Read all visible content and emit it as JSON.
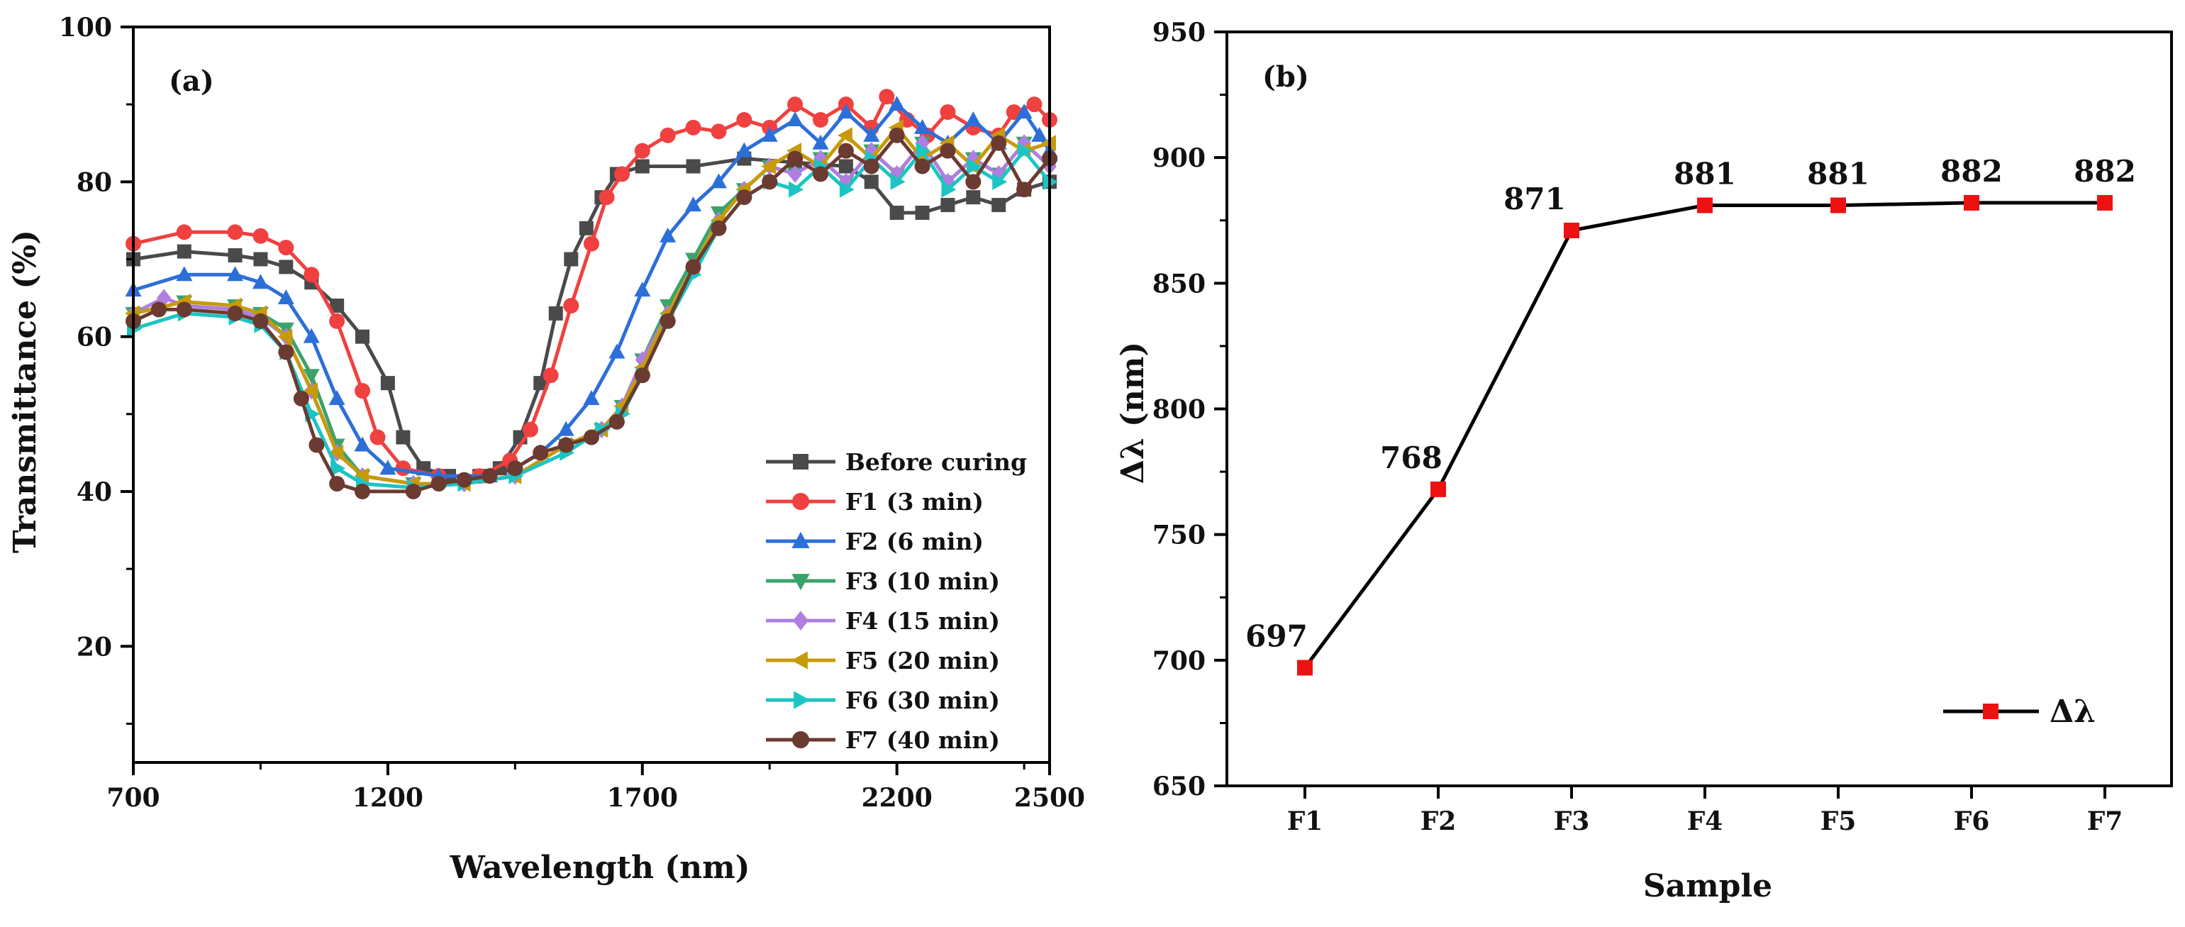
{
  "chart_data": [
    {
      "type": "line",
      "panel_label": "(a)",
      "xlabel": "Wavelength (nm)",
      "ylabel": "Transmittance (%)",
      "xlim": [
        700,
        2500
      ],
      "ylim": [
        5,
        100
      ],
      "xticks": [
        700,
        1200,
        1700,
        2200,
        2500
      ],
      "yticks": [
        20,
        40,
        60,
        80,
        100
      ],
      "legend_position": "bottom-right",
      "series": [
        {
          "name": "Before curing",
          "color": "#4a4a4a",
          "marker": "square",
          "points": [
            [
              700,
              70
            ],
            [
              800,
              71
            ],
            [
              900,
              70.5
            ],
            [
              950,
              70
            ],
            [
              1000,
              69
            ],
            [
              1050,
              67
            ],
            [
              1100,
              64
            ],
            [
              1150,
              60
            ],
            [
              1200,
              54
            ],
            [
              1230,
              47
            ],
            [
              1270,
              43
            ],
            [
              1320,
              42
            ],
            [
              1380,
              42
            ],
            [
              1420,
              43
            ],
            [
              1460,
              47
            ],
            [
              1500,
              54
            ],
            [
              1530,
              63
            ],
            [
              1560,
              70
            ],
            [
              1590,
              74
            ],
            [
              1620,
              78
            ],
            [
              1650,
              81
            ],
            [
              1700,
              82
            ],
            [
              1800,
              82
            ],
            [
              1900,
              83
            ],
            [
              2000,
              82.5
            ],
            [
              2100,
              82
            ],
            [
              2150,
              80
            ],
            [
              2200,
              76
            ],
            [
              2250,
              76
            ],
            [
              2300,
              77
            ],
            [
              2350,
              78
            ],
            [
              2400,
              77
            ],
            [
              2450,
              79
            ],
            [
              2500,
              80
            ]
          ]
        },
        {
          "name": "F1 (3 min)",
          "color": "#f04040",
          "marker": "circle",
          "points": [
            [
              700,
              72
            ],
            [
              800,
              73.5
            ],
            [
              900,
              73.5
            ],
            [
              950,
              73
            ],
            [
              1000,
              71.5
            ],
            [
              1050,
              68
            ],
            [
              1100,
              62
            ],
            [
              1150,
              53
            ],
            [
              1180,
              47
            ],
            [
              1230,
              43
            ],
            [
              1300,
              42
            ],
            [
              1380,
              42
            ],
            [
              1440,
              44
            ],
            [
              1480,
              48
            ],
            [
              1520,
              55
            ],
            [
              1560,
              64
            ],
            [
              1600,
              72
            ],
            [
              1630,
              78
            ],
            [
              1660,
              81
            ],
            [
              1700,
              84
            ],
            [
              1750,
              86
            ],
            [
              1800,
              87
            ],
            [
              1850,
              86.5
            ],
            [
              1900,
              88
            ],
            [
              1950,
              87
            ],
            [
              2000,
              90
            ],
            [
              2050,
              88
            ],
            [
              2100,
              90
            ],
            [
              2150,
              87
            ],
            [
              2180,
              91
            ],
            [
              2220,
              88
            ],
            [
              2260,
              86
            ],
            [
              2300,
              89
            ],
            [
              2350,
              87
            ],
            [
              2400,
              86
            ],
            [
              2430,
              89
            ],
            [
              2470,
              90
            ],
            [
              2500,
              88
            ]
          ]
        },
        {
          "name": "F2 (6 min)",
          "color": "#2d6fd8",
          "marker": "triangle-up",
          "points": [
            [
              700,
              66
            ],
            [
              800,
              68
            ],
            [
              900,
              68
            ],
            [
              950,
              67
            ],
            [
              1000,
              65
            ],
            [
              1050,
              60
            ],
            [
              1100,
              52
            ],
            [
              1150,
              46
            ],
            [
              1200,
              43
            ],
            [
              1300,
              42
            ],
            [
              1400,
              42
            ],
            [
              1450,
              43
            ],
            [
              1500,
              45
            ],
            [
              1550,
              48
            ],
            [
              1600,
              52
            ],
            [
              1650,
              58
            ],
            [
              1700,
              66
            ],
            [
              1750,
              73
            ],
            [
              1800,
              77
            ],
            [
              1850,
              80
            ],
            [
              1900,
              84
            ],
            [
              1950,
              86
            ],
            [
              2000,
              88
            ],
            [
              2050,
              85
            ],
            [
              2100,
              89
            ],
            [
              2150,
              86
            ],
            [
              2200,
              90
            ],
            [
              2250,
              87
            ],
            [
              2300,
              85
            ],
            [
              2350,
              88
            ],
            [
              2400,
              85
            ],
            [
              2450,
              89
            ],
            [
              2480,
              86
            ],
            [
              2500,
              84
            ]
          ]
        },
        {
          "name": "F3 (10 min)",
          "color": "#3aa36a",
          "marker": "triangle-down",
          "points": [
            [
              700,
              63
            ],
            [
              800,
              64.5
            ],
            [
              900,
              64
            ],
            [
              950,
              63
            ],
            [
              1000,
              61
            ],
            [
              1050,
              55
            ],
            [
              1100,
              46
            ],
            [
              1150,
              42
            ],
            [
              1250,
              41
            ],
            [
              1350,
              41
            ],
            [
              1450,
              42
            ],
            [
              1550,
              46
            ],
            [
              1620,
              48
            ],
            [
              1660,
              51
            ],
            [
              1700,
              57
            ],
            [
              1750,
              64
            ],
            [
              1800,
              70
            ],
            [
              1850,
              76
            ],
            [
              1900,
              79
            ],
            [
              1950,
              82
            ],
            [
              2000,
              81
            ],
            [
              2050,
              83
            ],
            [
              2100,
              80
            ],
            [
              2150,
              84
            ],
            [
              2200,
              81
            ],
            [
              2250,
              85
            ],
            [
              2300,
              80
            ],
            [
              2350,
              83
            ],
            [
              2400,
              81
            ],
            [
              2450,
              85
            ],
            [
              2500,
              82
            ]
          ]
        },
        {
          "name": "F4 (15 min)",
          "color": "#b07ee0",
          "marker": "diamond",
          "points": [
            [
              700,
              63
            ],
            [
              760,
              65
            ],
            [
              800,
              64
            ],
            [
              900,
              63.5
            ],
            [
              950,
              62.5
            ],
            [
              1000,
              60
            ],
            [
              1050,
              53
            ],
            [
              1100,
              45
            ],
            [
              1150,
              42
            ],
            [
              1250,
              41
            ],
            [
              1350,
              41
            ],
            [
              1450,
              42
            ],
            [
              1550,
              46
            ],
            [
              1620,
              48
            ],
            [
              1660,
              51
            ],
            [
              1700,
              57
            ],
            [
              1750,
              63
            ],
            [
              1800,
              69
            ],
            [
              1850,
              75
            ],
            [
              1900,
              79
            ],
            [
              1950,
              82
            ],
            [
              2000,
              81
            ],
            [
              2050,
              83
            ],
            [
              2100,
              80
            ],
            [
              2150,
              84
            ],
            [
              2200,
              81
            ],
            [
              2250,
              85
            ],
            [
              2300,
              80
            ],
            [
              2350,
              83
            ],
            [
              2400,
              81
            ],
            [
              2450,
              85
            ],
            [
              2500,
              82
            ]
          ]
        },
        {
          "name": "F5 (20 min)",
          "color": "#c79a0a",
          "marker": "triangle-left",
          "points": [
            [
              700,
              63
            ],
            [
              800,
              64.5
            ],
            [
              900,
              64
            ],
            [
              950,
              63
            ],
            [
              1000,
              60
            ],
            [
              1050,
              53
            ],
            [
              1100,
              45
            ],
            [
              1150,
              42
            ],
            [
              1250,
              41
            ],
            [
              1350,
              41
            ],
            [
              1450,
              42
            ],
            [
              1550,
              46
            ],
            [
              1620,
              48
            ],
            [
              1660,
              51
            ],
            [
              1700,
              56
            ],
            [
              1750,
              63
            ],
            [
              1800,
              69
            ],
            [
              1850,
              75
            ],
            [
              1900,
              79
            ],
            [
              1950,
              82
            ],
            [
              2000,
              84
            ],
            [
              2050,
              82
            ],
            [
              2100,
              86
            ],
            [
              2150,
              83
            ],
            [
              2200,
              87
            ],
            [
              2250,
              83
            ],
            [
              2300,
              85
            ],
            [
              2350,
              82
            ],
            [
              2400,
              86
            ],
            [
              2450,
              84
            ],
            [
              2500,
              85
            ]
          ]
        },
        {
          "name": "F6 (30 min)",
          "color": "#1cc4c4",
          "marker": "triangle-right",
          "points": [
            [
              700,
              61
            ],
            [
              800,
              63
            ],
            [
              900,
              62.5
            ],
            [
              950,
              61.5
            ],
            [
              1000,
              58
            ],
            [
              1050,
              50
            ],
            [
              1100,
              43
            ],
            [
              1150,
              41
            ],
            [
              1250,
              40.5
            ],
            [
              1350,
              41
            ],
            [
              1450,
              42
            ],
            [
              1550,
              45
            ],
            [
              1620,
              48
            ],
            [
              1660,
              50
            ],
            [
              1700,
              55
            ],
            [
              1750,
              62
            ],
            [
              1800,
              68
            ],
            [
              1850,
              74
            ],
            [
              1900,
              78
            ],
            [
              1950,
              80
            ],
            [
              2000,
              79
            ],
            [
              2050,
              82
            ],
            [
              2100,
              79
            ],
            [
              2150,
              83
            ],
            [
              2200,
              80
            ],
            [
              2250,
              84
            ],
            [
              2300,
              79
            ],
            [
              2350,
              82
            ],
            [
              2400,
              80
            ],
            [
              2450,
              84
            ],
            [
              2500,
              80
            ]
          ]
        },
        {
          "name": "F7 (40 min)",
          "color": "#6b3a30",
          "marker": "circle",
          "points": [
            [
              700,
              62
            ],
            [
              750,
              63.5
            ],
            [
              800,
              63.5
            ],
            [
              900,
              63
            ],
            [
              950,
              62
            ],
            [
              1000,
              58
            ],
            [
              1030,
              52
            ],
            [
              1060,
              46
            ],
            [
              1100,
              41
            ],
            [
              1150,
              40
            ],
            [
              1250,
              40
            ],
            [
              1300,
              41
            ],
            [
              1350,
              41.5
            ],
            [
              1400,
              42
            ],
            [
              1450,
              43
            ],
            [
              1500,
              45
            ],
            [
              1550,
              46
            ],
            [
              1600,
              47
            ],
            [
              1650,
              49
            ],
            [
              1700,
              55
            ],
            [
              1750,
              62
            ],
            [
              1800,
              69
            ],
            [
              1850,
              74
            ],
            [
              1900,
              78
            ],
            [
              1950,
              80
            ],
            [
              2000,
              83
            ],
            [
              2050,
              81
            ],
            [
              2100,
              84
            ],
            [
              2150,
              82
            ],
            [
              2200,
              86
            ],
            [
              2250,
              82
            ],
            [
              2300,
              84
            ],
            [
              2350,
              80
            ],
            [
              2400,
              85
            ],
            [
              2450,
              79
            ],
            [
              2500,
              83
            ]
          ]
        }
      ]
    },
    {
      "type": "line",
      "panel_label": "(b)",
      "xlabel": "Sample",
      "ylabel": "Δλ (nm)",
      "categories": [
        "F1",
        "F2",
        "F3",
        "F4",
        "F5",
        "F6",
        "F7"
      ],
      "values": [
        697,
        768,
        871,
        881,
        881,
        882,
        882
      ],
      "ylim": [
        650,
        950
      ],
      "yticks": [
        650,
        700,
        750,
        800,
        850,
        900,
        950
      ],
      "legend": "Δλ",
      "legend_position": "bottom-right",
      "color": "#000000",
      "marker_color": "#ee1111"
    }
  ]
}
